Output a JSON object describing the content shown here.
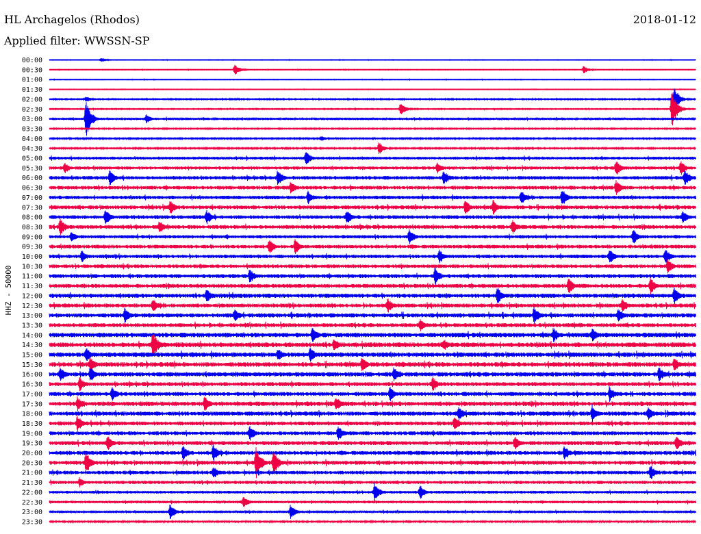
{
  "header": {
    "station": "HL Archagelos (Rhodos)",
    "date": "2018-01-12",
    "filter": "Applied filter: WWSSN-SP"
  },
  "chart_data": {
    "type": "line",
    "title": "HL Archagelos (Rhodos)",
    "subtitle": "Applied filter: WWSSN-SP",
    "ylabel": "HHZ - 50000",
    "rows": [
      "00:00",
      "00:30",
      "01:00",
      "01:30",
      "02:00",
      "02:30",
      "03:00",
      "03:30",
      "04:00",
      "04:30",
      "05:00",
      "05:30",
      "06:00",
      "06:30",
      "07:00",
      "07:30",
      "08:00",
      "08:30",
      "09:00",
      "09:30",
      "10:00",
      "10:30",
      "11:00",
      "11:30",
      "12:00",
      "12:30",
      "13:00",
      "13:30",
      "14:00",
      "14:30",
      "15:00",
      "15:30",
      "16:00",
      "16:30",
      "17:00",
      "17:30",
      "18:00",
      "18:30",
      "19:00",
      "19:30",
      "20:00",
      "20:30",
      "21:00",
      "21:30",
      "22:00",
      "22:30",
      "23:00",
      "23:30"
    ],
    "trace_colors": [
      "#0000ee",
      "#ee0044"
    ],
    "x_minutes_per_row": 30,
    "noise_level": [
      0.3,
      0.3,
      0.3,
      0.3,
      0.6,
      0.5,
      1.2,
      0.6,
      0.7,
      0.7,
      1.5,
      1.6,
      1.8,
      1.8,
      1.8,
      1.9,
      1.9,
      1.9,
      1.7,
      1.8,
      1.8,
      1.8,
      1.9,
      2.0,
      2.1,
      2.0,
      2.1,
      2.0,
      2.3,
      2.4,
      2.3,
      2.3,
      2.2,
      2.0,
      2.0,
      2.2,
      2.1,
      2.0,
      1.9,
      2.0,
      2.0,
      2.0,
      1.8,
      1.6,
      1.4,
      1.3,
      1.2,
      0.8
    ],
    "events": [
      {
        "row": 0,
        "minute": 2.4,
        "amp": 4
      },
      {
        "row": 1,
        "minute": 8.6,
        "amp": 9
      },
      {
        "row": 1,
        "minute": 24.8,
        "amp": 6
      },
      {
        "row": 4,
        "minute": 1.7,
        "amp": 5
      },
      {
        "row": 4,
        "minute": 29.0,
        "amp": 20
      },
      {
        "row": 5,
        "minute": 16.3,
        "amp": 10
      },
      {
        "row": 5,
        "minute": 28.9,
        "amp": 30
      },
      {
        "row": 6,
        "minute": 1.7,
        "amp": 28
      },
      {
        "row": 6,
        "minute": 4.5,
        "amp": 7
      },
      {
        "row": 8,
        "minute": 12.6,
        "amp": 5
      },
      {
        "row": 9,
        "minute": 15.3,
        "amp": 10
      },
      {
        "row": 10,
        "minute": 11.9,
        "amp": 12
      },
      {
        "row": 11,
        "minute": 0.7,
        "amp": 9
      },
      {
        "row": 11,
        "minute": 18.0,
        "amp": 9
      },
      {
        "row": 11,
        "minute": 26.3,
        "amp": 12
      },
      {
        "row": 11,
        "minute": 29.3,
        "amp": 12
      },
      {
        "row": 12,
        "minute": 2.8,
        "amp": 12
      },
      {
        "row": 12,
        "minute": 10.6,
        "amp": 13
      },
      {
        "row": 12,
        "minute": 18.3,
        "amp": 13
      },
      {
        "row": 12,
        "minute": 29.5,
        "amp": 14
      },
      {
        "row": 13,
        "minute": 11.2,
        "amp": 10
      },
      {
        "row": 13,
        "minute": 26.3,
        "amp": 12
      },
      {
        "row": 14,
        "minute": 12.0,
        "amp": 11
      },
      {
        "row": 14,
        "minute": 21.9,
        "amp": 12
      },
      {
        "row": 14,
        "minute": 23.8,
        "amp": 14
      },
      {
        "row": 15,
        "minute": 5.6,
        "amp": 12
      },
      {
        "row": 15,
        "minute": 19.3,
        "amp": 12
      },
      {
        "row": 15,
        "minute": 20.6,
        "amp": 12
      },
      {
        "row": 16,
        "minute": 2.6,
        "amp": 13
      },
      {
        "row": 16,
        "minute": 7.3,
        "amp": 12
      },
      {
        "row": 16,
        "minute": 13.8,
        "amp": 12
      },
      {
        "row": 16,
        "minute": 29.4,
        "amp": 11
      },
      {
        "row": 17,
        "minute": 0.5,
        "amp": 14
      },
      {
        "row": 17,
        "minute": 5.1,
        "amp": 11
      },
      {
        "row": 17,
        "minute": 21.5,
        "amp": 12
      },
      {
        "row": 18,
        "minute": 1.0,
        "amp": 9
      },
      {
        "row": 18,
        "minute": 16.7,
        "amp": 12
      },
      {
        "row": 18,
        "minute": 27.1,
        "amp": 12
      },
      {
        "row": 19,
        "minute": 10.2,
        "amp": 12
      },
      {
        "row": 19,
        "minute": 11.4,
        "amp": 12
      },
      {
        "row": 20,
        "minute": 1.5,
        "amp": 10
      },
      {
        "row": 20,
        "minute": 18.1,
        "amp": 11
      },
      {
        "row": 20,
        "minute": 26.0,
        "amp": 12
      },
      {
        "row": 20,
        "minute": 28.6,
        "amp": 13
      },
      {
        "row": 21,
        "minute": 28.7,
        "amp": 12
      },
      {
        "row": 22,
        "minute": 9.3,
        "amp": 12
      },
      {
        "row": 22,
        "minute": 17.9,
        "amp": 14
      },
      {
        "row": 23,
        "minute": 24.1,
        "amp": 13
      },
      {
        "row": 23,
        "minute": 27.9,
        "amp": 14
      },
      {
        "row": 24,
        "minute": 7.3,
        "amp": 11
      },
      {
        "row": 24,
        "minute": 20.8,
        "amp": 14
      },
      {
        "row": 24,
        "minute": 29.0,
        "amp": 13
      },
      {
        "row": 25,
        "minute": 4.8,
        "amp": 12
      },
      {
        "row": 25,
        "minute": 15.7,
        "amp": 12
      },
      {
        "row": 25,
        "minute": 26.6,
        "amp": 12
      },
      {
        "row": 26,
        "minute": 3.5,
        "amp": 12
      },
      {
        "row": 26,
        "minute": 8.6,
        "amp": 10
      },
      {
        "row": 26,
        "minute": 22.5,
        "amp": 14
      },
      {
        "row": 26,
        "minute": 26.4,
        "amp": 12
      },
      {
        "row": 27,
        "minute": 17.2,
        "amp": 10
      },
      {
        "row": 28,
        "minute": 12.2,
        "amp": 14
      },
      {
        "row": 28,
        "minute": 23.4,
        "amp": 12
      },
      {
        "row": 28,
        "minute": 25.2,
        "amp": 12
      },
      {
        "row": 29,
        "minute": 4.8,
        "amp": 22
      },
      {
        "row": 29,
        "minute": 13.2,
        "amp": 12
      },
      {
        "row": 29,
        "minute": 18.3,
        "amp": 10
      },
      {
        "row": 30,
        "minute": 1.7,
        "amp": 12
      },
      {
        "row": 30,
        "minute": 10.6,
        "amp": 11
      },
      {
        "row": 30,
        "minute": 12.1,
        "amp": 12
      },
      {
        "row": 31,
        "minute": 1.9,
        "amp": 12
      },
      {
        "row": 31,
        "minute": 14.5,
        "amp": 12
      },
      {
        "row": 31,
        "minute": 29.0,
        "amp": 12
      },
      {
        "row": 32,
        "minute": 0.5,
        "amp": 12
      },
      {
        "row": 32,
        "minute": 1.9,
        "amp": 12
      },
      {
        "row": 32,
        "minute": 16.0,
        "amp": 12
      },
      {
        "row": 32,
        "minute": 28.3,
        "amp": 12
      },
      {
        "row": 33,
        "minute": 1.4,
        "amp": 11
      },
      {
        "row": 33,
        "minute": 17.8,
        "amp": 12
      },
      {
        "row": 34,
        "minute": 2.9,
        "amp": 12
      },
      {
        "row": 34,
        "minute": 15.8,
        "amp": 12
      },
      {
        "row": 34,
        "minute": 26.0,
        "amp": 12
      },
      {
        "row": 35,
        "minute": 1.3,
        "amp": 12
      },
      {
        "row": 35,
        "minute": 7.2,
        "amp": 12
      },
      {
        "row": 35,
        "minute": 13.3,
        "amp": 12
      },
      {
        "row": 36,
        "minute": 19.0,
        "amp": 13
      },
      {
        "row": 36,
        "minute": 25.2,
        "amp": 14
      },
      {
        "row": 36,
        "minute": 27.8,
        "amp": 12
      },
      {
        "row": 37,
        "minute": 1.3,
        "amp": 13
      },
      {
        "row": 37,
        "minute": 18.8,
        "amp": 12
      },
      {
        "row": 38,
        "minute": 9.3,
        "amp": 12
      },
      {
        "row": 38,
        "minute": 13.4,
        "amp": 14
      },
      {
        "row": 39,
        "minute": 2.7,
        "amp": 12
      },
      {
        "row": 39,
        "minute": 21.6,
        "amp": 12
      },
      {
        "row": 39,
        "minute": 29.1,
        "amp": 12
      },
      {
        "row": 40,
        "minute": 6.2,
        "amp": 12
      },
      {
        "row": 40,
        "minute": 7.6,
        "amp": 14
      },
      {
        "row": 40,
        "minute": 23.9,
        "amp": 12
      },
      {
        "row": 41,
        "minute": 1.7,
        "amp": 18
      },
      {
        "row": 41,
        "minute": 9.6,
        "amp": 26
      },
      {
        "row": 41,
        "minute": 10.4,
        "amp": 20
      },
      {
        "row": 42,
        "minute": 7.6,
        "amp": 10
      },
      {
        "row": 42,
        "minute": 27.9,
        "amp": 12
      },
      {
        "row": 43,
        "minute": 1.4,
        "amp": 8
      },
      {
        "row": 44,
        "minute": 15.1,
        "amp": 14
      },
      {
        "row": 44,
        "minute": 17.2,
        "amp": 12
      },
      {
        "row": 45,
        "minute": 9.0,
        "amp": 10
      },
      {
        "row": 46,
        "minute": 5.6,
        "amp": 12
      },
      {
        "row": 46,
        "minute": 11.2,
        "amp": 12
      }
    ]
  }
}
